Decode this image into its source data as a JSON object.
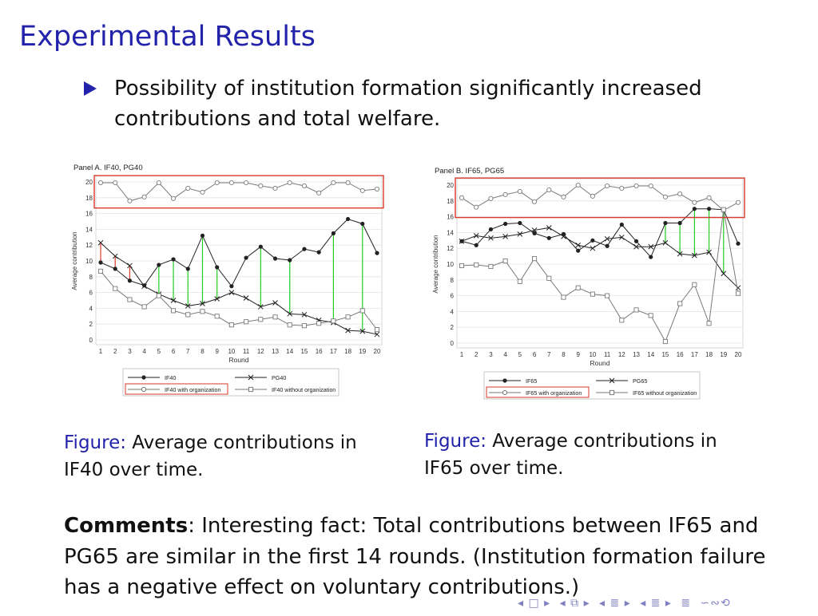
{
  "slide": {
    "title": "Experimental Results",
    "bullet": "Possibility of institution formation significantly increased contributions and total welfare."
  },
  "captions": [
    {
      "label": "Figure:",
      "text": "Average contributions in IF40 over time."
    },
    {
      "label": "Figure:",
      "text": "Average contributions in IF65 over time."
    }
  ],
  "comments": {
    "label": "Comments",
    "text": ": Interesting fact: Total contributions between IF65 and PG65 are similar in the first 14 rounds. (Institution formation failure has a negative effect on voluntary contributions.)"
  },
  "nav": {
    "symbols": [
      "◂ □ ▸",
      "◂ ⧉ ▸",
      "◂ ≣ ▸",
      "◂ ≣ ▸",
      "≣",
      "∽∾⟲"
    ]
  },
  "colors": {
    "title": "#2222aa",
    "highlight_box": "#d93a2b",
    "green_gap": "#22cc22",
    "red_gap": "#d93a2b",
    "dark_series": "#222222",
    "light_series": "#7a7a7a"
  },
  "chart_data": [
    {
      "type": "line",
      "title": "Panel A. IF40, PG40",
      "xlabel": "Round",
      "ylabel": "Average contribution",
      "x": [
        1,
        2,
        3,
        4,
        5,
        6,
        7,
        8,
        9,
        10,
        11,
        12,
        13,
        14,
        15,
        16,
        17,
        18,
        19,
        20
      ],
      "ylim": [
        0,
        20
      ],
      "yticks": [
        0,
        2,
        4,
        6,
        8,
        10,
        12,
        14,
        16,
        18,
        20
      ],
      "grid": true,
      "legend_position": "bottom",
      "series": [
        {
          "name": "IF40",
          "marker": "filled-circle",
          "color": "#222222",
          "values": [
            9.8,
            9.0,
            7.5,
            6.9,
            9.5,
            10.2,
            9.0,
            13.2,
            9.2,
            6.8,
            10.4,
            11.8,
            10.3,
            10.1,
            11.5,
            11.1,
            13.5,
            15.3,
            14.7,
            11.0
          ]
        },
        {
          "name": "PG40",
          "marker": "x",
          "color": "#222222",
          "values": [
            12.3,
            10.6,
            9.4,
            6.8,
            5.8,
            5.0,
            4.3,
            4.6,
            5.2,
            6.0,
            5.3,
            4.2,
            4.7,
            3.3,
            3.2,
            2.5,
            2.2,
            1.2,
            1.1,
            0.7
          ]
        },
        {
          "name": "IF40 with organization",
          "marker": "open-circle",
          "color": "#7a7a7a",
          "highlighted": true,
          "values": [
            19.9,
            19.9,
            17.6,
            18.1,
            19.9,
            17.9,
            19.2,
            18.7,
            19.9,
            19.9,
            19.9,
            19.5,
            19.2,
            19.9,
            19.5,
            18.6,
            19.9,
            19.9,
            18.9,
            19.1
          ]
        },
        {
          "name": "IF40 without organization",
          "marker": "open-square",
          "color": "#7a7a7a",
          "values": [
            8.7,
            6.5,
            5.1,
            4.2,
            5.6,
            3.7,
            3.2,
            3.6,
            3.0,
            1.9,
            2.3,
            2.6,
            2.9,
            1.9,
            1.8,
            2.1,
            2.4,
            2.9,
            3.7,
            1.3
          ]
        }
      ],
      "gap_markers": {
        "red_rounds": [
          1,
          2,
          3
        ],
        "green_rounds": [
          5,
          6,
          7,
          8,
          9,
          12,
          14,
          17,
          19
        ]
      }
    },
    {
      "type": "line",
      "title": "Panel B. IF65, PG65",
      "xlabel": "Round",
      "ylabel": "Average contribution",
      "x": [
        1,
        2,
        3,
        4,
        5,
        6,
        7,
        8,
        9,
        10,
        11,
        12,
        13,
        14,
        15,
        16,
        17,
        18,
        19,
        20
      ],
      "ylim": [
        0,
        20
      ],
      "yticks": [
        0,
        2,
        4,
        6,
        8,
        10,
        12,
        14,
        16,
        18,
        20
      ],
      "grid": true,
      "legend_position": "bottom",
      "series": [
        {
          "name": "IF65",
          "marker": "filled-circle",
          "color": "#222222",
          "values": [
            12.9,
            12.4,
            14.4,
            15.1,
            15.2,
            13.9,
            13.3,
            13.8,
            11.7,
            13.0,
            12.3,
            15.0,
            12.9,
            10.9,
            15.2,
            15.2,
            17.0,
            17.0,
            16.9,
            12.6
          ]
        },
        {
          "name": "PG65",
          "marker": "x",
          "color": "#222222",
          "values": [
            12.9,
            13.6,
            13.3,
            13.5,
            13.8,
            14.3,
            14.6,
            13.5,
            12.4,
            12.0,
            13.2,
            13.4,
            12.2,
            12.2,
            12.7,
            11.3,
            11.1,
            11.5,
            8.8,
            7.0
          ]
        },
        {
          "name": "IF65 with organization",
          "marker": "open-circle",
          "color": "#7a7a7a",
          "highlighted": true,
          "values": [
            18.4,
            17.2,
            18.3,
            18.8,
            19.2,
            17.9,
            19.4,
            18.5,
            20.0,
            18.6,
            19.9,
            19.6,
            19.9,
            19.9,
            18.5,
            18.9,
            17.8,
            18.4,
            16.8,
            17.8
          ]
        },
        {
          "name": "IF65 without organization",
          "marker": "open-square",
          "color": "#7a7a7a",
          "values": [
            9.8,
            9.9,
            9.7,
            10.4,
            7.8,
            10.7,
            8.2,
            5.8,
            7.0,
            6.2,
            6.0,
            2.9,
            4.2,
            3.5,
            0.2,
            5.0,
            7.4,
            2.5,
            16.9,
            6.3
          ]
        }
      ],
      "gap_markers": {
        "red_rounds": [],
        "green_rounds": [
          15,
          16,
          17,
          18,
          19
        ]
      }
    }
  ]
}
